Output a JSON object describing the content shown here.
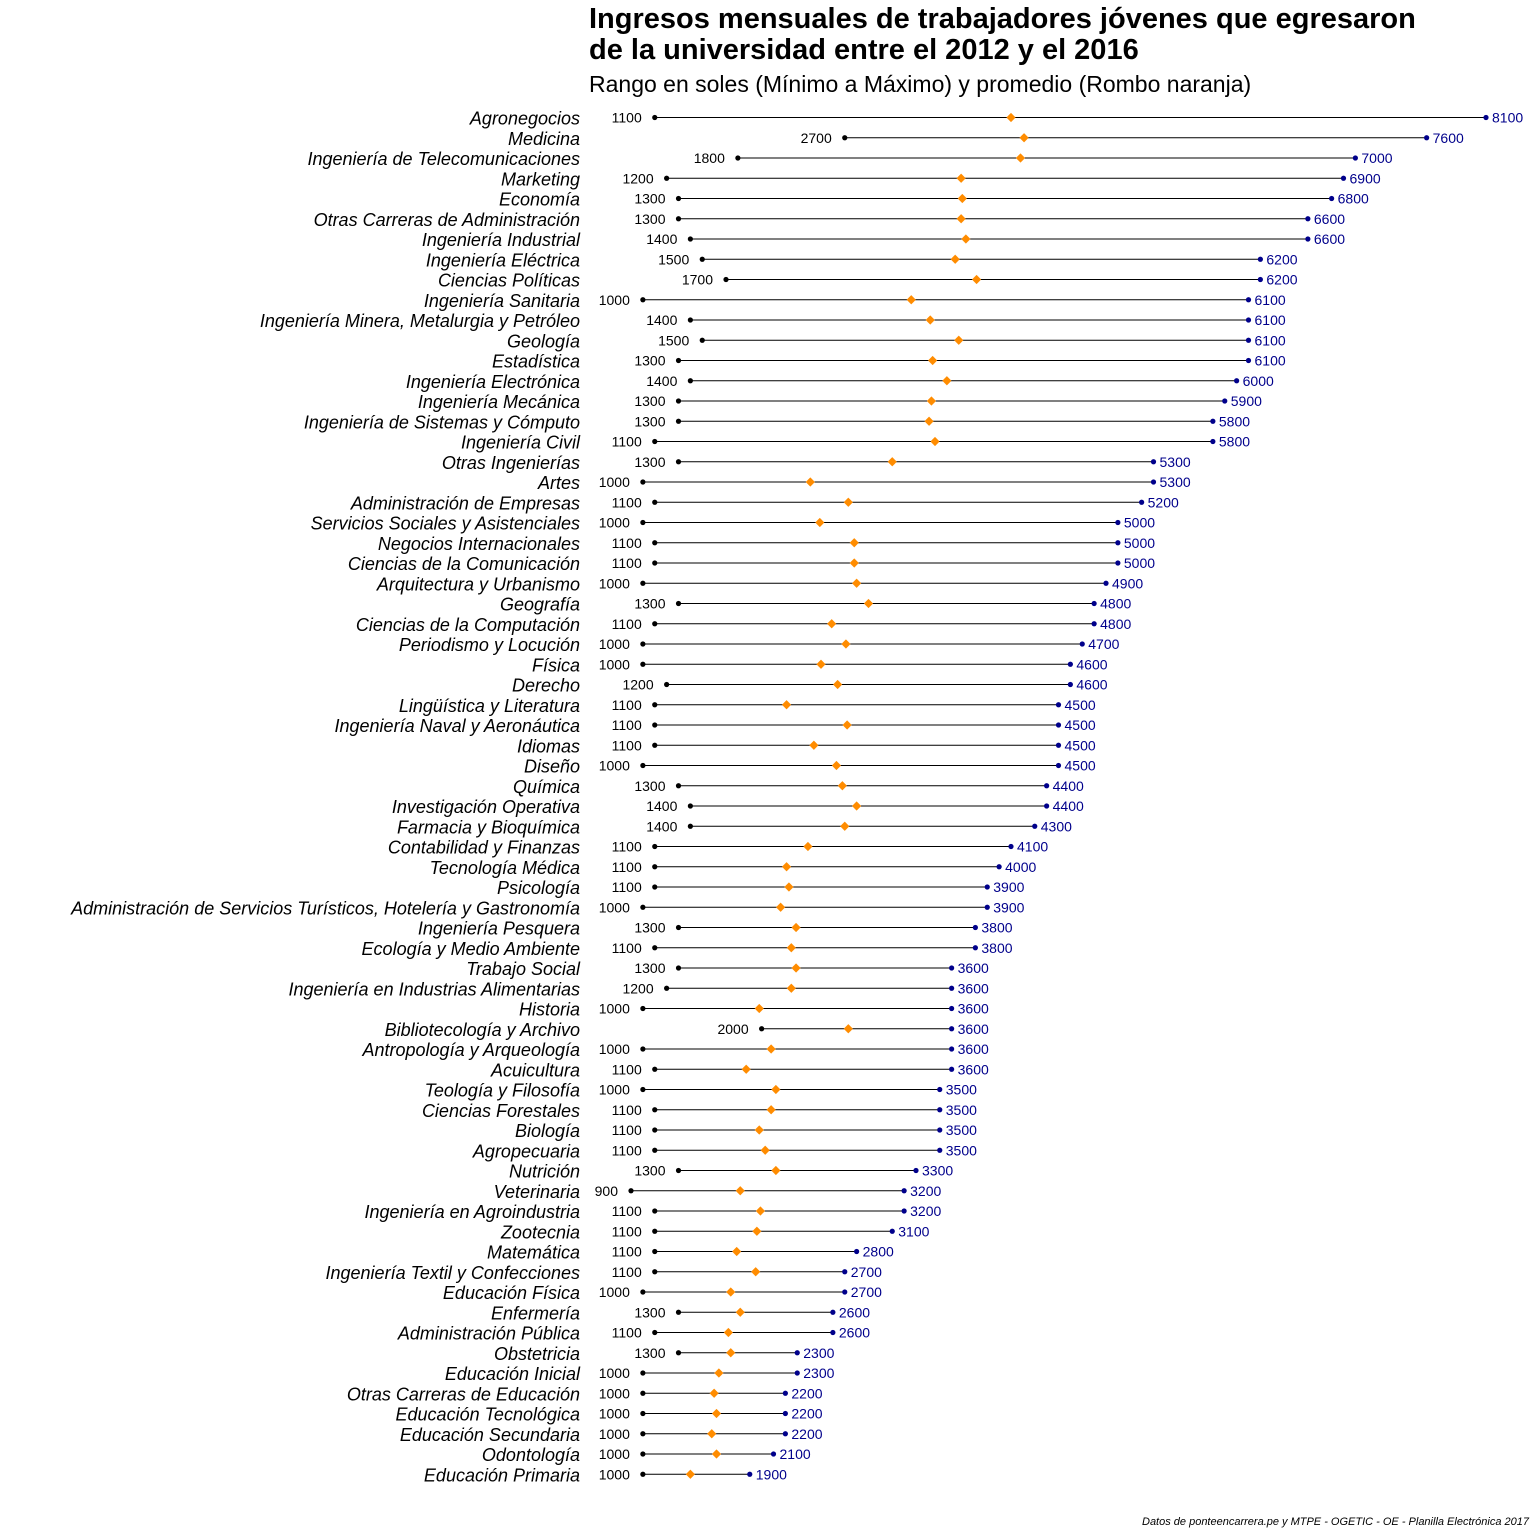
{
  "chart_data": {
    "type": "dumbbell",
    "title_lines": [
      "Ingresos mensuales de trabajadores jóvenes que egresaron",
      "de la universidad entre el 2012 y el 2016"
    ],
    "subtitle": "Rango en soles (Mínimo a Máximo) y promedio (Rombo naranja)",
    "caption": "Datos de ponteencarrera.pe y MTPE - OGETIC - OE - Planilla Electrónica 2017",
    "xlim": [
      900,
      8100
    ],
    "grid": false,
    "colors": {
      "min_point": "#000000",
      "max_point": "#00008B",
      "max_label": "#00008B",
      "mean_point": "#FF8C00",
      "segment": "#000000"
    },
    "categories": [
      "Agronegocios",
      "Medicina",
      "Ingeniería de Telecomunicaciones",
      "Marketing",
      "Economía",
      "Otras Carreras de Administración",
      "Ingeniería Industrial",
      "Ingeniería Eléctrica",
      "Ciencias Políticas",
      "Ingeniería Sanitaria",
      "Ingeniería Minera, Metalurgia y Petróleo",
      "Geología",
      "Estadística",
      "Ingeniería Electrónica",
      "Ingeniería Mecánica",
      "Ingeniería de Sistemas y Cómputo",
      "Ingeniería Civil",
      "Otras Ingenierías",
      "Artes",
      "Administración de Empresas",
      "Servicios Sociales y Asistenciales",
      "Negocios Internacionales",
      "Ciencias de la Comunicación",
      "Arquitectura y Urbanismo",
      "Geografía",
      "Ciencias de la Computación",
      "Periodismo y Locución",
      "Física",
      "Derecho",
      "Lingüística y Literatura",
      "Ingeniería Naval y Aeronáutica",
      "Idiomas",
      "Diseño",
      "Química",
      "Investigación Operativa",
      "Farmacia y Bioquímica",
      "Contabilidad y Finanzas",
      "Tecnología Médica",
      "Psicología",
      "Administración de Servicios Turísticos, Hotelería y Gastronomía",
      "Ingeniería Pesquera",
      "Ecología y Medio Ambiente",
      "Trabajo Social",
      "Ingeniería en Industrias Alimentarias",
      "Historia",
      "Bibliotecología y Archivo",
      "Antropología y Arqueología",
      "Acuicultura",
      "Teología y Filosofía",
      "Ciencias Forestales",
      "Biología",
      "Agropecuaria",
      "Nutrición",
      "Veterinaria",
      "Ingeniería en Agroindustria",
      "Zootecnia",
      "Matemática",
      "Ingeniería Textil y Confecciones",
      "Educación Física",
      "Enfermería",
      "Administración Pública",
      "Obstetricia",
      "Educación Inicial",
      "Otras Carreras de Educación",
      "Educación Tecnológica",
      "Educación Secundaria",
      "Odontología",
      "Educación Primaria"
    ],
    "series": [
      {
        "name": "Mínimo",
        "values": [
          1100,
          2700,
          1800,
          1200,
          1300,
          1300,
          1400,
          1500,
          1700,
          1000,
          1400,
          1500,
          1300,
          1400,
          1300,
          1300,
          1100,
          1300,
          1000,
          1100,
          1000,
          1100,
          1100,
          1000,
          1300,
          1100,
          1000,
          1000,
          1200,
          1100,
          1100,
          1100,
          1000,
          1300,
          1400,
          1400,
          1100,
          1100,
          1100,
          1000,
          1300,
          1100,
          1300,
          1200,
          1000,
          2000,
          1000,
          1100,
          1000,
          1100,
          1100,
          1100,
          1300,
          900,
          1100,
          1100,
          1100,
          1100,
          1000,
          1300,
          1100,
          1300,
          1000,
          1000,
          1000,
          1000,
          1000,
          1000
        ]
      },
      {
        "name": "Máximo",
        "values": [
          8100,
          7600,
          7000,
          6900,
          6800,
          6600,
          6600,
          6200,
          6200,
          6100,
          6100,
          6100,
          6100,
          6000,
          5900,
          5800,
          5800,
          5300,
          5300,
          5200,
          5000,
          5000,
          5000,
          4900,
          4800,
          4800,
          4700,
          4600,
          4600,
          4500,
          4500,
          4500,
          4500,
          4400,
          4400,
          4300,
          4100,
          4000,
          3900,
          3900,
          3800,
          3800,
          3600,
          3600,
          3600,
          3600,
          3600,
          3600,
          3500,
          3500,
          3500,
          3500,
          3300,
          3200,
          3200,
          3100,
          2800,
          2700,
          2700,
          2600,
          2600,
          2300,
          2300,
          2200,
          2200,
          2200,
          2100,
          1900
        ]
      },
      {
        "name": "Promedio",
        "values": [
          4100,
          4210,
          4180,
          3680,
          3690,
          3680,
          3720,
          3630,
          3810,
          3260,
          3420,
          3660,
          3440,
          3560,
          3430,
          3410,
          3460,
          3100,
          2410,
          2730,
          2490,
          2780,
          2780,
          2800,
          2900,
          2590,
          2710,
          2500,
          2640,
          2210,
          2720,
          2440,
          2630,
          2680,
          2800,
          2700,
          2390,
          2210,
          2230,
          2160,
          2290,
          2250,
          2290,
          2250,
          1980,
          2730,
          2080,
          1870,
          2120,
          2080,
          1980,
          2030,
          2120,
          1820,
          1990,
          1960,
          1790,
          1950,
          1740,
          1820,
          1720,
          1740,
          1640,
          1600,
          1620,
          1580,
          1620,
          1400
        ]
      }
    ]
  }
}
